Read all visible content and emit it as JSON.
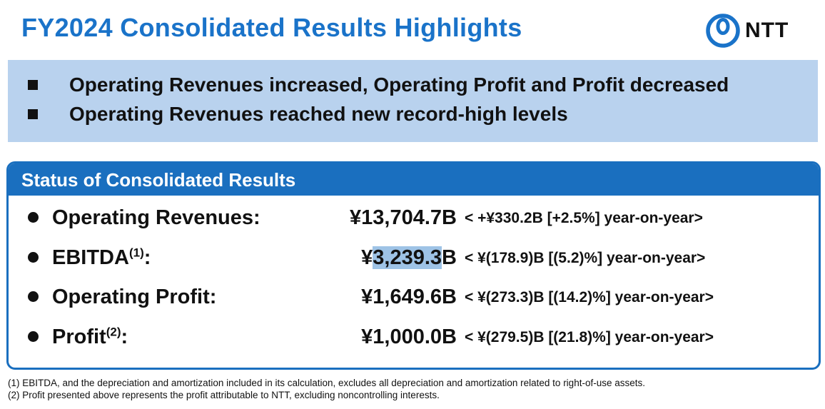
{
  "title": "FY2024 Consolidated Results Highlights",
  "logo": {
    "text": "NTT",
    "icon": "ntt-logo-icon"
  },
  "banner": {
    "items": [
      "Operating Revenues increased, Operating Profit and Profit decreased",
      "Operating Revenues reached new record-high levels"
    ]
  },
  "status": {
    "heading": "Status of Consolidated Results",
    "rows": [
      {
        "label": "Operating Revenues:",
        "sup": "",
        "value": "¥13,704.7B",
        "yoy": "< +¥330.2B [+2.5%] year-on-year>"
      },
      {
        "label": "EBITDA",
        "sup": "(1)",
        "label_end": ":",
        "value_prefix": "¥",
        "value_highlight": "3,239.3",
        "value_suffix": "B",
        "yoy": "< ¥(178.9)B [(5.2)%] year-on-year>"
      },
      {
        "label": "Operating Profit:",
        "sup": "",
        "value": "¥1,649.6B",
        "yoy": "< ¥(273.3)B [(14.2)%] year-on-year>"
      },
      {
        "label": "Profit",
        "sup": "(2)",
        "label_end": ":",
        "value": "¥1,000.0B",
        "yoy": "< ¥(279.5)B [(21.8)%] year-on-year>"
      }
    ]
  },
  "footnotes": [
    "(1)  EBITDA, and the depreciation and amortization included in its calculation, excludes all depreciation and amortization related to right-of-use assets.",
    "(2)  Profit presented above represents the profit attributable to NTT, excluding noncontrolling interests."
  ],
  "colors": {
    "brand_blue": "#1a6fbf",
    "title_blue": "#1a73c9",
    "banner_bg": "#b9d2ee",
    "highlight": "#9ec3e6"
  }
}
